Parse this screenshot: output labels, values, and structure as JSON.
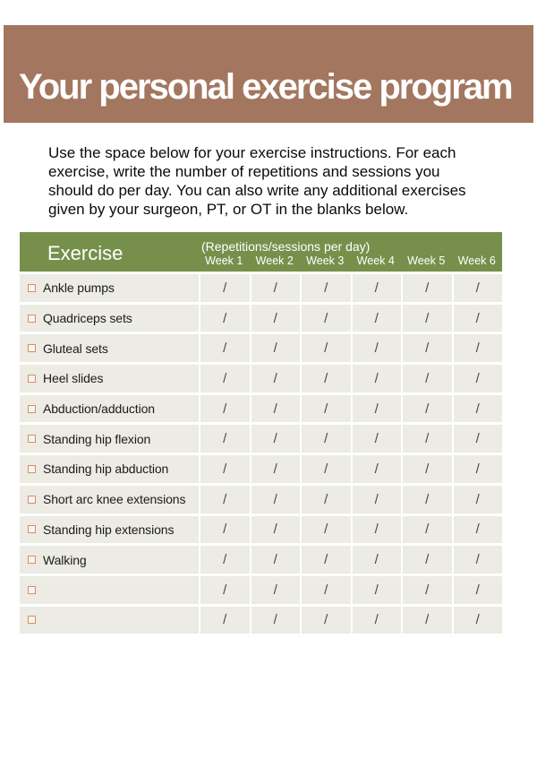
{
  "colors": {
    "banner_bg": "#a3765f",
    "table_header_bg": "#76904c",
    "row_bg": "#ecebe4",
    "checkbox_border": "#d2906a",
    "slash_color": "#4a4a4a",
    "title_text": "#ffffff"
  },
  "banner": {
    "title": "Your personal exercise program"
  },
  "intro": {
    "lines": [
      "Use the space below for your exercise instructions. For each",
      "exercise, write the number of repetitions and sessions you",
      "should do per day. You can also write any additional exercises",
      "given by your surgeon, PT, or OT in the blanks below."
    ]
  },
  "table": {
    "exercise_header": "Exercise",
    "reps_caption": "(Repetitions/sessions per day)",
    "week_headers": [
      "Week 1",
      "Week 2",
      "Week 3",
      "Week 4",
      "Week 5",
      "Week 6"
    ],
    "slash": "/",
    "rows": [
      {
        "label": "Ankle pumps"
      },
      {
        "label": "Quadriceps sets"
      },
      {
        "label": "Gluteal sets"
      },
      {
        "label": "Heel slides"
      },
      {
        "label": "Abduction/adduction"
      },
      {
        "label": "Standing hip flexion"
      },
      {
        "label": "Standing hip abduction"
      },
      {
        "label": "Short arc knee extensions"
      },
      {
        "label": "Standing hip extensions"
      },
      {
        "label": "Walking"
      },
      {
        "label": ""
      },
      {
        "label": ""
      }
    ]
  }
}
